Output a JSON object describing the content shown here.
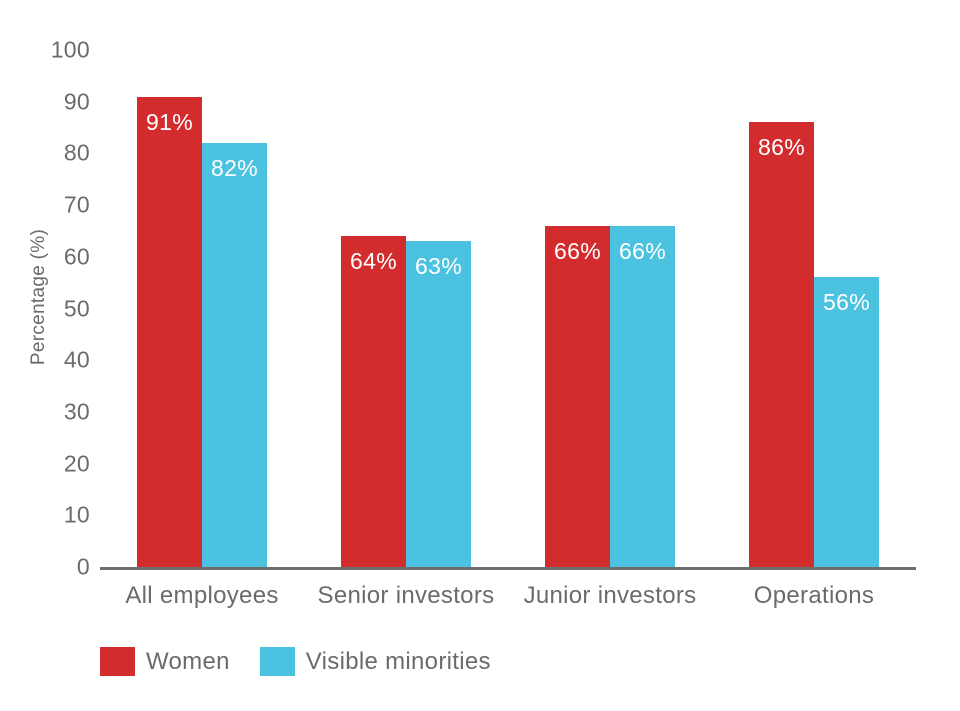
{
  "chart_data": {
    "type": "bar",
    "title": "",
    "ylabel": "Percentage (%)",
    "xlabel": "",
    "ylim": [
      0,
      100
    ],
    "yticks": [
      0,
      10,
      20,
      30,
      40,
      50,
      60,
      70,
      80,
      90,
      100
    ],
    "grid": false,
    "legend_position": "bottom-left",
    "value_suffix": "%",
    "categories": [
      "All employees",
      "Senior investors",
      "Junior investors",
      "Operations"
    ],
    "series": [
      {
        "name": "Women",
        "color": "#d32c2e",
        "values": [
          91,
          64,
          66,
          86
        ],
        "data_labels": [
          "91%",
          "64%",
          "66%",
          "86%"
        ]
      },
      {
        "name": "Visible minorities",
        "color": "#4ac2e0",
        "values": [
          82,
          63,
          66,
          56
        ],
        "data_labels": [
          "82%",
          "63%",
          "66%",
          "56%"
        ]
      }
    ],
    "colors": {
      "bar_label_text": "#ffffff",
      "axis_line": "#6e6e6e",
      "tick_text": "#6b6b6b"
    }
  }
}
